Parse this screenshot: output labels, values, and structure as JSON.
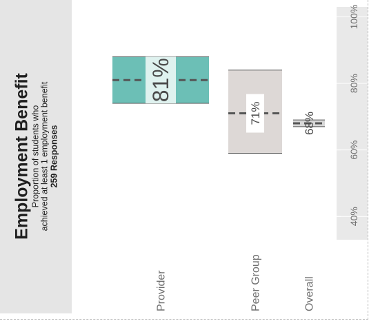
{
  "header": {
    "title": "Employment Benefit",
    "subtitle_line1": "Proportion of students who",
    "subtitle_line2": "achieved at least 1 employment benefit",
    "responses": "259 Responses"
  },
  "colors": {
    "provider": "#6cbfb6",
    "provider_label_bg": "#dff2ef",
    "peer": "#ddd8d6",
    "overall": "#d8d8d8",
    "axis_panel": "#e9e9e9",
    "title_panel": "#e5e5e5",
    "dash": "#555555"
  },
  "chart_data": {
    "type": "bar",
    "orientation": "rotated",
    "categories": [
      "Provider",
      "Peer Group",
      "Overall"
    ],
    "series": [
      {
        "values": [
          81,
          71,
          68
        ]
      }
    ],
    "interval_low": [
      74,
      59,
      67
    ],
    "interval_high": [
      88,
      84,
      69
    ],
    "value_labels": [
      "81%",
      "71%",
      "68%"
    ],
    "value_axis": {
      "range": [
        33,
        103
      ],
      "ticks": [
        40,
        60,
        80,
        100
      ],
      "tick_labels": [
        "40%",
        "60%",
        "80%",
        "100%"
      ]
    }
  }
}
